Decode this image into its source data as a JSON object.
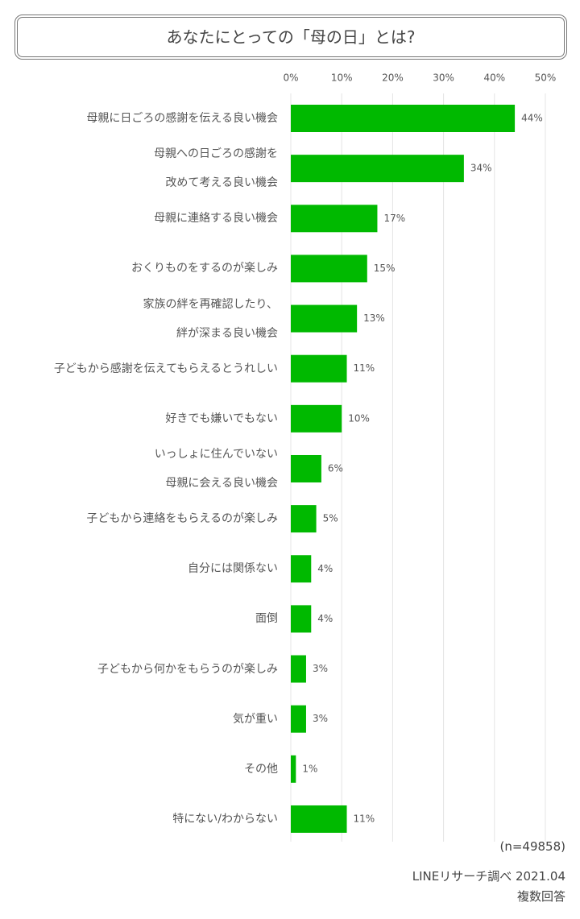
{
  "chart_data": {
    "type": "barh",
    "title": "あなたにとっての「母の日」とは?",
    "categories": [
      "母親に日ごろの感謝を伝える良い機会",
      "母親への日ごろの感謝を\n改めて考える良い機会",
      "母親に連絡する良い機会",
      "おくりものをするのが楽しみ",
      "家族の絆を再確認したり、\n絆が深まる良い機会",
      "子どもから感謝を伝えてもらえるとうれしい",
      "好きでも嫌いでもない",
      "いっしょに住んでいない\n母親に会える良い機会",
      "子どもから連絡をもらえるのが楽しみ",
      "自分には関係ない",
      "面倒",
      "子どもから何かをもらうのが楽しみ",
      "気が重い",
      "その他",
      "特にない/わからない"
    ],
    "values": [
      44,
      34,
      17,
      15,
      13,
      11,
      10,
      6,
      5,
      4,
      4,
      3,
      3,
      1,
      11
    ],
    "value_labels": [
      "44%",
      "34%",
      "17%",
      "15%",
      "13%",
      "11%",
      "10%",
      "6%",
      "5%",
      "4%",
      "4%",
      "3%",
      "3%",
      "1%",
      "11%"
    ],
    "color": "#00b900",
    "xlim": [
      0,
      50
    ],
    "xticks": [
      {
        "value": 0,
        "label": "0%"
      },
      {
        "value": 10,
        "label": "10%"
      },
      {
        "value": 20,
        "label": "20%"
      },
      {
        "value": 30,
        "label": "30%"
      },
      {
        "value": 40,
        "label": "40%"
      },
      {
        "value": 50,
        "label": "50%"
      }
    ],
    "grid": true,
    "notes": [
      "(n=49858)",
      "LINEリサーチ調べ 2021.04",
      "複数回答"
    ]
  }
}
